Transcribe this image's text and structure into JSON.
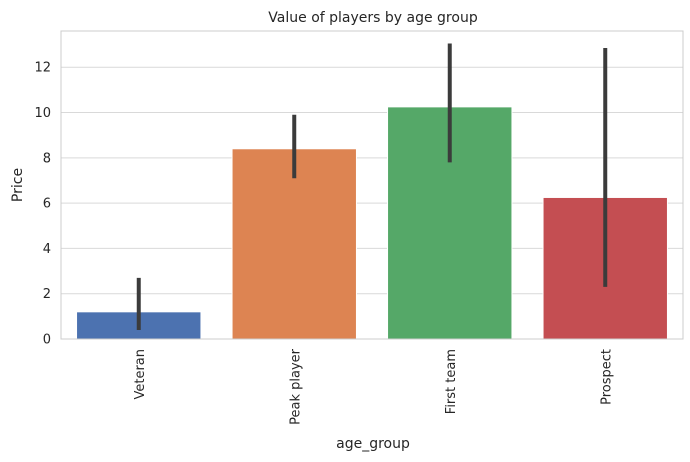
{
  "chart_data": {
    "type": "bar",
    "title": "Value of players by age group",
    "xlabel": "age_group",
    "ylabel": "Price",
    "categories": [
      "Veteran",
      "Peak player",
      "First team",
      "Prospect"
    ],
    "values": [
      1.2,
      8.4,
      10.25,
      6.25
    ],
    "error_bars": [
      {
        "low": 0.4,
        "high": 2.7
      },
      {
        "low": 7.1,
        "high": 9.9
      },
      {
        "low": 7.8,
        "high": 13.05
      },
      {
        "low": 2.3,
        "high": 12.85
      }
    ],
    "colors": [
      "#4c72b0",
      "#dd8452",
      "#55a868",
      "#c44e52"
    ],
    "error_color": "#3b3b3b",
    "ylim": [
      0,
      13.6
    ],
    "yticks": [
      "0",
      "2",
      "4",
      "6",
      "8",
      "10",
      "12"
    ],
    "grid": true,
    "legend": "none"
  }
}
